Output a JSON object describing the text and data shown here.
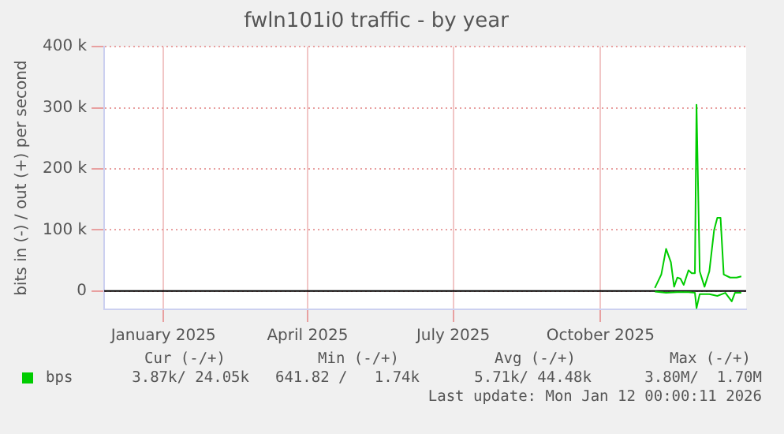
{
  "chart_data": {
    "type": "line",
    "title": "fwln101i0 traffic - by year",
    "ylabel": "bits in (-) / out (+) per second",
    "xlim": [
      "2024-12-10",
      "2026-01-15"
    ],
    "xticks": [
      {
        "value": "2025-01-16",
        "label": "January 2025"
      },
      {
        "value": "2025-04-16",
        "label": "April 2025"
      },
      {
        "value": "2025-07-16",
        "label": "July 2025"
      },
      {
        "value": "2025-10-16",
        "label": "October 2025"
      }
    ],
    "ylim": [
      -30000,
      400000
    ],
    "yticks": [
      {
        "value": 0,
        "label": "0"
      },
      {
        "value": 100000,
        "label": "100 k"
      },
      {
        "value": 200000,
        "label": "200 k"
      },
      {
        "value": 300000,
        "label": "300 k"
      },
      {
        "value": 400000,
        "label": "400 k"
      }
    ],
    "series": [
      {
        "name": "bps",
        "color": "#00cc00",
        "x": [
          "2025-11-19",
          "2025-11-23",
          "2025-11-26",
          "2025-11-29",
          "2025-12-01",
          "2025-12-03",
          "2025-12-05",
          "2025-12-07",
          "2025-12-10",
          "2025-12-12",
          "2025-12-14",
          "2025-12-15",
          "2025-12-17",
          "2025-12-20",
          "2025-12-23",
          "2025-12-26",
          "2025-12-28",
          "2025-12-30",
          "2026-01-01",
          "2026-01-05",
          "2026-01-09",
          "2026-01-12"
        ],
        "values": [
          5000,
          27000,
          69000,
          47000,
          7000,
          22000,
          20000,
          10000,
          34000,
          29000,
          29000,
          305000,
          32000,
          7000,
          32000,
          100000,
          120000,
          120000,
          27000,
          22000,
          22000,
          24000
        ]
      },
      {
        "color": "#00cc00",
        "x": [
          "2025-11-19",
          "2025-11-26",
          "2025-12-03",
          "2025-12-10",
          "2025-12-14",
          "2025-12-15",
          "2025-12-17",
          "2025-12-23",
          "2025-12-28",
          "2026-01-02",
          "2026-01-06",
          "2026-01-08",
          "2026-01-12"
        ],
        "values": [
          -1000,
          -3000,
          -2000,
          -2000,
          -3000,
          -28000,
          -5000,
          -5000,
          -8000,
          -3000,
          -17000,
          -3000,
          -3000
        ]
      }
    ],
    "ref_lines": [
      {
        "axis": "y",
        "value": 0,
        "color": "#000000"
      }
    ],
    "grid": true,
    "legend": "bottom",
    "marker": "none",
    "line_style": "solid",
    "annotations": [
      "Cur (-/+)",
      "Min (-/+)",
      "Avg (-/+)",
      "Max (-/+)",
      "3.87k/ 24.05k",
      "641.82 /   1.74k",
      "5.71k/ 44.48k",
      "3.80M/  1.70M",
      "Last update: Mon Jan 12 00:00:11 2026"
    ]
  }
}
